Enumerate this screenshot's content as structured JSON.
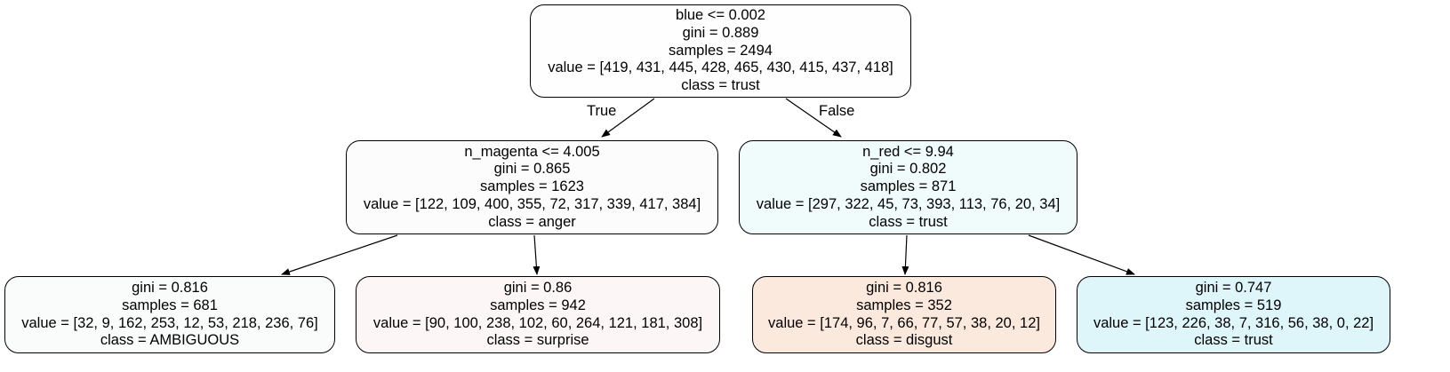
{
  "tree": {
    "nodes": [
      {
        "id": "root",
        "fill": "#fefefe",
        "lines": [
          "blue <= 0.002",
          "gini = 0.889",
          "samples = 2494",
          "value = [419, 431, 445, 428, 465, 430, 415, 437, 418]",
          "class = trust"
        ]
      },
      {
        "id": "n_magenta_split",
        "fill": "#fdfcfc",
        "lines": [
          "n_magenta <= 4.005",
          "gini = 0.865",
          "samples = 1623",
          "value = [122, 109, 400, 355, 72, 317, 339, 417, 384]",
          "class = anger"
        ]
      },
      {
        "id": "n_red_split",
        "fill": "#f0fbfc",
        "lines": [
          "n_red <= 9.94",
          "gini = 0.802",
          "samples = 871",
          "value = [297, 322, 45, 73, 393, 113, 76, 20, 34]",
          "class = trust"
        ]
      },
      {
        "id": "leaf_ambiguous",
        "fill": "#fafcfb",
        "lines": [
          "gini = 0.816",
          "samples = 681",
          "value = [32, 9, 162, 253, 12, 53, 218, 236, 76]",
          "class = AMBIGUOUS"
        ]
      },
      {
        "id": "leaf_surprise",
        "fill": "#fdf6f6",
        "lines": [
          "gini = 0.86",
          "samples = 942",
          "value = [90, 100, 238, 102, 60, 264, 121, 181, 308]",
          "class = surprise"
        ]
      },
      {
        "id": "leaf_disgust",
        "fill": "#fbe9dd",
        "lines": [
          "gini = 0.816",
          "samples = 352",
          "value = [174, 96, 7, 66, 77, 57, 38, 20, 12]",
          "class = disgust"
        ]
      },
      {
        "id": "leaf_trust",
        "fill": "#def5fa",
        "lines": [
          "gini = 0.747",
          "samples = 519",
          "value = [123, 226, 38, 7, 316, 56, 38, 0, 22]",
          "class = trust"
        ]
      }
    ],
    "edges": [
      {
        "from": "root",
        "to": "n_magenta_split",
        "label": "True"
      },
      {
        "from": "root",
        "to": "n_red_split",
        "label": "False"
      },
      {
        "from": "n_magenta_split",
        "to": "leaf_ambiguous",
        "label": ""
      },
      {
        "from": "n_magenta_split",
        "to": "leaf_surprise",
        "label": ""
      },
      {
        "from": "n_red_split",
        "to": "leaf_disgust",
        "label": ""
      },
      {
        "from": "n_red_split",
        "to": "leaf_trust",
        "label": ""
      }
    ]
  }
}
